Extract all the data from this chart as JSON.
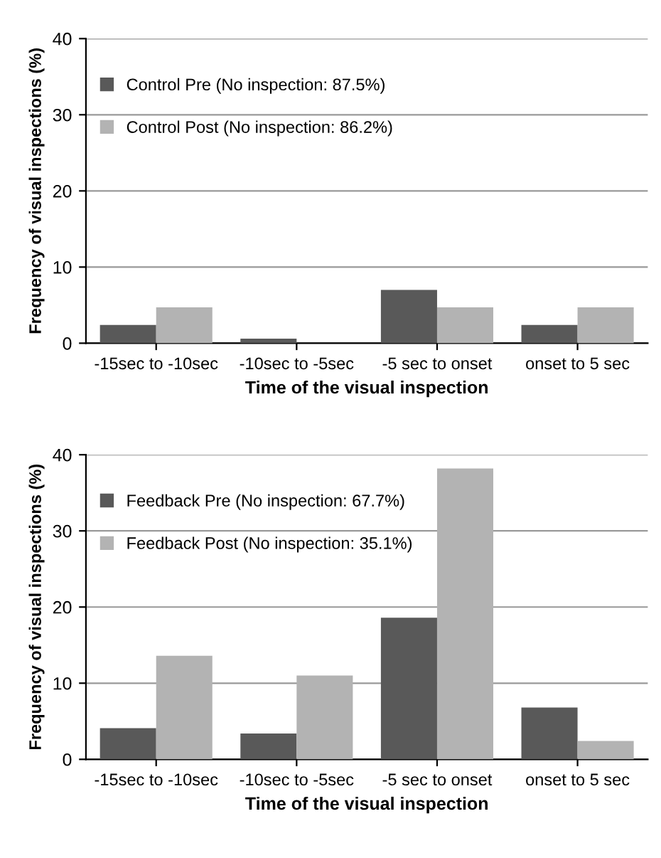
{
  "chart_data": [
    {
      "type": "bar",
      "xlabel": "Time of the visual inspection",
      "ylabel": "Frequency of visual inspections (%)",
      "categories": [
        "-15sec to -10sec",
        "-10sec to -5sec",
        "-5 sec to onset",
        "onset to 5 sec"
      ],
      "series": [
        {
          "name": "Control Pre (No inspection: 87.5%)",
          "color": "#595959",
          "values": [
            2.4,
            0.6,
            7.0,
            2.4
          ]
        },
        {
          "name": "Control Post (No inspection: 86.2%)",
          "color": "#b3b3b3",
          "values": [
            4.7,
            0,
            4.7,
            4.7
          ]
        }
      ],
      "ylim": [
        0,
        40
      ],
      "yticks": [
        0,
        10,
        20,
        30,
        40
      ],
      "grid": "y",
      "legend": "top left"
    },
    {
      "type": "bar",
      "xlabel": "Time of the visual inspection",
      "ylabel": "Frequency of visual inspections (%)",
      "categories": [
        "-15sec to -10sec",
        "-10sec to -5sec",
        "-5 sec to onset",
        "onset to 5 sec"
      ],
      "series": [
        {
          "name": "Feedback Pre (No inspection: 67.7%)",
          "color": "#595959",
          "values": [
            4.1,
            3.4,
            18.6,
            6.8
          ]
        },
        {
          "name": "Feedback Post (No inspection: 35.1%)",
          "color": "#b3b3b3",
          "values": [
            13.6,
            11.0,
            38.2,
            2.4
          ]
        }
      ],
      "ylim": [
        0,
        40
      ],
      "yticks": [
        0,
        10,
        20,
        30,
        40
      ],
      "grid": "y",
      "legend": "top left"
    }
  ]
}
